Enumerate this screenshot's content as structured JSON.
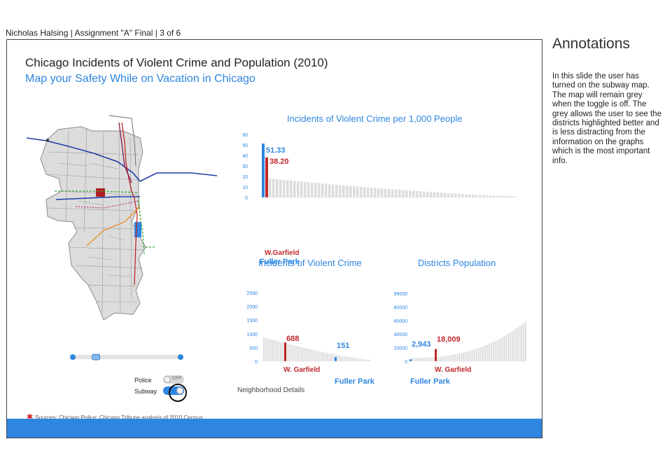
{
  "header": {
    "caption": "Nicholas Halsing | Assignment \"A\" Final | 3 of 6"
  },
  "slide": {
    "title": "Chicago Incidents of Violent Crime and Population (2010)",
    "subtitle": "Map your Safety While on Vacation in Chicago",
    "sources": "Sources: Chicago Police; Chicago Tribune analysis of 2010 Census",
    "neighborhood_details": "Neighborhood Details",
    "toggles": {
      "police": {
        "label": "Police",
        "state_text": "OFF",
        "on": false
      },
      "subway": {
        "label": "Subway",
        "on": true
      }
    },
    "slider_range": {
      "start": 0.18,
      "end": 0.25
    }
  },
  "annotations": {
    "title": "Annotations",
    "body": "In this slide the user has turned on the subway map. The map will remain grey when the toggle is off. The grey allows the user to see the districts highlighted better and is less distracting from the information on the graphs which is the most important info."
  },
  "colors": {
    "accent": "#2e86e0",
    "highlight_red": "#c0282a",
    "bar_grey": "#dcdcdc"
  },
  "chart_data": [
    {
      "type": "bar",
      "title": "Incidents of Violent Crime per 1,000 People",
      "ylim": [
        0,
        60
      ],
      "yticks": [
        "60",
        "50",
        "40",
        "30",
        "20",
        "10",
        "0"
      ],
      "highlights": [
        {
          "name": "Fuller Park",
          "value": 51.33,
          "value_label": "51.33",
          "color": "#2e86e0"
        },
        {
          "name": "W.Garfield",
          "value": 38.2,
          "value_label": "38.20",
          "color": "#c0282a"
        }
      ],
      "n_bars": 74
    },
    {
      "type": "bar",
      "title": "Incidents of Violent Crime",
      "ylim": [
        0,
        2500
      ],
      "yticks": [
        "2500",
        "2000",
        "1500",
        "1000",
        "500",
        "0"
      ],
      "highlights": [
        {
          "name": "W. Garfield",
          "value": 688,
          "value_label": "688",
          "color": "#c0282a"
        },
        {
          "name": "Fuller Park",
          "value": 151,
          "value_label": "151",
          "color": "#2e86e0"
        }
      ],
      "n_bars": 70
    },
    {
      "type": "bar",
      "title": "Districts Population",
      "ylim": [
        0,
        100000
      ],
      "yticks": [
        "99000",
        "80000",
        "60000",
        "40000",
        "20000",
        "0"
      ],
      "highlights": [
        {
          "name": "Fuller Park",
          "value": 2943,
          "value_label": "2,943",
          "color": "#2e86e0"
        },
        {
          "name": "W. Garfield",
          "value": 18009,
          "value_label": "18,009",
          "color": "#c0282a"
        }
      ],
      "n_bars": 74
    }
  ]
}
